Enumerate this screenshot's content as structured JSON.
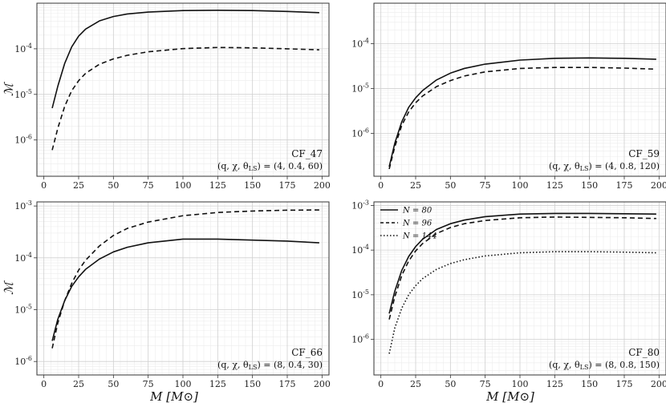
{
  "figure": {
    "xlabel": "M [M⊙]",
    "ylabel": "ℳ"
  },
  "chart_data": [
    {
      "type": "line",
      "panel_title": "CF_47",
      "params_label": "(q, χ, θLS) = (4, 0.4, 60)",
      "xlabel": "",
      "ylabel": "ℳ",
      "yscale": "log",
      "xlim": [
        -5,
        205
      ],
      "ylim": [
        1.6e-07,
        0.001
      ],
      "xticks": [
        0,
        25,
        50,
        75,
        100,
        125,
        150,
        175,
        200
      ],
      "yticks": [
        {
          "value": 1e-06,
          "label": "10-6"
        },
        {
          "value": 1e-05,
          "label": "10-5"
        },
        {
          "value": 0.0001,
          "label": "10-4"
        }
      ],
      "grid": true,
      "series": [
        {
          "name": "",
          "style": "solid",
          "x": [
            6,
            10,
            15,
            20,
            25,
            30,
            40,
            50,
            60,
            75,
            100,
            125,
            150,
            175,
            198
          ],
          "y": [
            5e-06,
            1.5e-05,
            4.8e-05,
            0.00011,
            0.00019,
            0.00027,
            0.00041,
            0.00051,
            0.00058,
            0.00064,
            0.00069,
            0.0007,
            0.00069,
            0.00066,
            0.00062
          ]
        },
        {
          "name": "",
          "style": "dashed",
          "x": [
            6,
            10,
            15,
            20,
            25,
            30,
            40,
            50,
            60,
            75,
            100,
            125,
            150,
            175,
            198
          ],
          "y": [
            6e-07,
            1.8e-06,
            5.5e-06,
            1.2e-05,
            2e-05,
            2.9e-05,
            4.6e-05,
            6e-05,
            7.2e-05,
            8.6e-05,
            0.000101,
            0.000107,
            0.000105,
            0.0001,
            9.5e-05
          ]
        }
      ]
    },
    {
      "type": "line",
      "panel_title": "CF_59",
      "params_label": "(q, χ, θLS) = (4, 0.8, 120)",
      "xlabel": "",
      "ylabel": "",
      "yscale": "log",
      "xlim": [
        -5,
        205
      ],
      "ylim": [
        1.1e-07,
        0.0008
      ],
      "xticks": [
        0,
        25,
        50,
        75,
        100,
        125,
        150,
        175,
        200
      ],
      "yticks": [
        {
          "value": 1e-06,
          "label": "10-6"
        },
        {
          "value": 1e-05,
          "label": "10-5"
        },
        {
          "value": 0.0001,
          "label": "10-4"
        }
      ],
      "grid": true,
      "series": [
        {
          "name": "",
          "style": "solid",
          "x": [
            6,
            10,
            15,
            20,
            25,
            30,
            40,
            50,
            60,
            75,
            100,
            125,
            150,
            175,
            198
          ],
          "y": [
            1.8e-07,
            6e-07,
            1.8e-06,
            3.8e-06,
            6.2e-06,
            9e-06,
            1.55e-05,
            2.2e-05,
            2.8e-05,
            3.5e-05,
            4.3e-05,
            4.7e-05,
            4.8e-05,
            4.7e-05,
            4.5e-05
          ]
        },
        {
          "name": "",
          "style": "dashed",
          "x": [
            6,
            10,
            15,
            20,
            25,
            30,
            40,
            50,
            60,
            75,
            100,
            125,
            150,
            175,
            198
          ],
          "y": [
            1.6e-07,
            5e-07,
            1.5e-06,
            3e-06,
            4.8e-06,
            6.8e-06,
            1.1e-05,
            1.5e-05,
            1.9e-05,
            2.35e-05,
            2.8e-05,
            2.95e-05,
            2.95e-05,
            2.85e-05,
            2.7e-05
          ]
        }
      ]
    },
    {
      "type": "line",
      "panel_title": "CF_66",
      "params_label": "(q, χ, θLS) = (8, 0.4, 30)",
      "xlabel": "M [M⊙]",
      "ylabel": "ℳ",
      "yscale": "log",
      "xlim": [
        -5,
        205
      ],
      "ylim": [
        5.5e-07,
        0.0012
      ],
      "xticks": [
        0,
        25,
        50,
        75,
        100,
        125,
        150,
        175,
        200
      ],
      "yticks": [
        {
          "value": 1e-06,
          "label": "10-6"
        },
        {
          "value": 1e-05,
          "label": "10-5"
        },
        {
          "value": 0.0001,
          "label": "10-4"
        },
        {
          "value": 0.001,
          "label": "10-3"
        }
      ],
      "grid": true,
      "series": [
        {
          "name": "",
          "style": "solid",
          "x": [
            6,
            10,
            15,
            20,
            25,
            30,
            40,
            50,
            60,
            75,
            100,
            125,
            150,
            175,
            198
          ],
          "y": [
            2.5e-06,
            6.5e-06,
            1.5e-05,
            2.8e-05,
            4.3e-05,
            6e-05,
            9.5e-05,
            0.00013,
            0.00016,
            0.000195,
            0.00023,
            0.00023,
            0.00022,
            0.00021,
            0.000195
          ]
        },
        {
          "name": "",
          "style": "dashed",
          "x": [
            6,
            10,
            15,
            20,
            25,
            30,
            40,
            50,
            60,
            75,
            100,
            125,
            150,
            175,
            198
          ],
          "y": [
            1.8e-06,
            5.5e-06,
            1.5e-05,
            3.2e-05,
            5.8e-05,
            9e-05,
            0.00017,
            0.00027,
            0.00037,
            0.00049,
            0.00065,
            0.00075,
            0.0008,
            0.00083,
            0.00084
          ]
        }
      ]
    },
    {
      "type": "line",
      "panel_title": "CF_80",
      "params_label": "(q, χ, θLS) = (8, 0.8, 150)",
      "xlabel": "M [M⊙]",
      "ylabel": "",
      "yscale": "log",
      "xlim": [
        -5,
        205
      ],
      "ylim": [
        1.6e-07,
        0.0012
      ],
      "xticks": [
        0,
        25,
        50,
        75,
        100,
        125,
        150,
        175,
        200
      ],
      "yticks": [
        {
          "value": 1e-06,
          "label": "10-6"
        },
        {
          "value": 1e-05,
          "label": "10-5"
        },
        {
          "value": 0.0001,
          "label": "10-4"
        },
        {
          "value": 0.001,
          "label": "10-3"
        }
      ],
      "grid": true,
      "legend": "top-left",
      "series": [
        {
          "name": "N = 80",
          "style": "solid",
          "x": [
            6,
            10,
            15,
            20,
            25,
            30,
            40,
            50,
            60,
            75,
            100,
            125,
            150,
            175,
            198
          ],
          "y": [
            3.8e-06,
            1.2e-05,
            3.5e-05,
            7.2e-05,
            0.00012,
            0.000175,
            0.00029,
            0.00039,
            0.00047,
            0.00056,
            0.00064,
            0.00066,
            0.00066,
            0.00065,
            0.00064
          ]
        },
        {
          "name": "N = 96",
          "style": "dashed",
          "x": [
            6,
            10,
            15,
            20,
            25,
            30,
            40,
            50,
            60,
            75,
            100,
            125,
            150,
            175,
            198
          ],
          "y": [
            2.8e-06,
            9e-06,
            2.7e-05,
            5.7e-05,
            9.6e-05,
            0.00014,
            0.000235,
            0.00032,
            0.00039,
            0.00046,
            0.00053,
            0.00055,
            0.00054,
            0.00053,
            0.00051
          ]
        },
        {
          "name": "N = 144",
          "style": "dotted",
          "x": [
            6,
            10,
            15,
            20,
            25,
            30,
            40,
            50,
            60,
            75,
            100,
            125,
            150,
            175,
            198
          ],
          "y": [
            4.8e-07,
            1.8e-06,
            5e-06,
            1e-05,
            1.6e-05,
            2.3e-05,
            3.7e-05,
            5e-05,
            6.1e-05,
            7.4e-05,
            8.7e-05,
            9.2e-05,
            9.2e-05,
            9e-05,
            8.7e-05
          ]
        }
      ]
    }
  ]
}
